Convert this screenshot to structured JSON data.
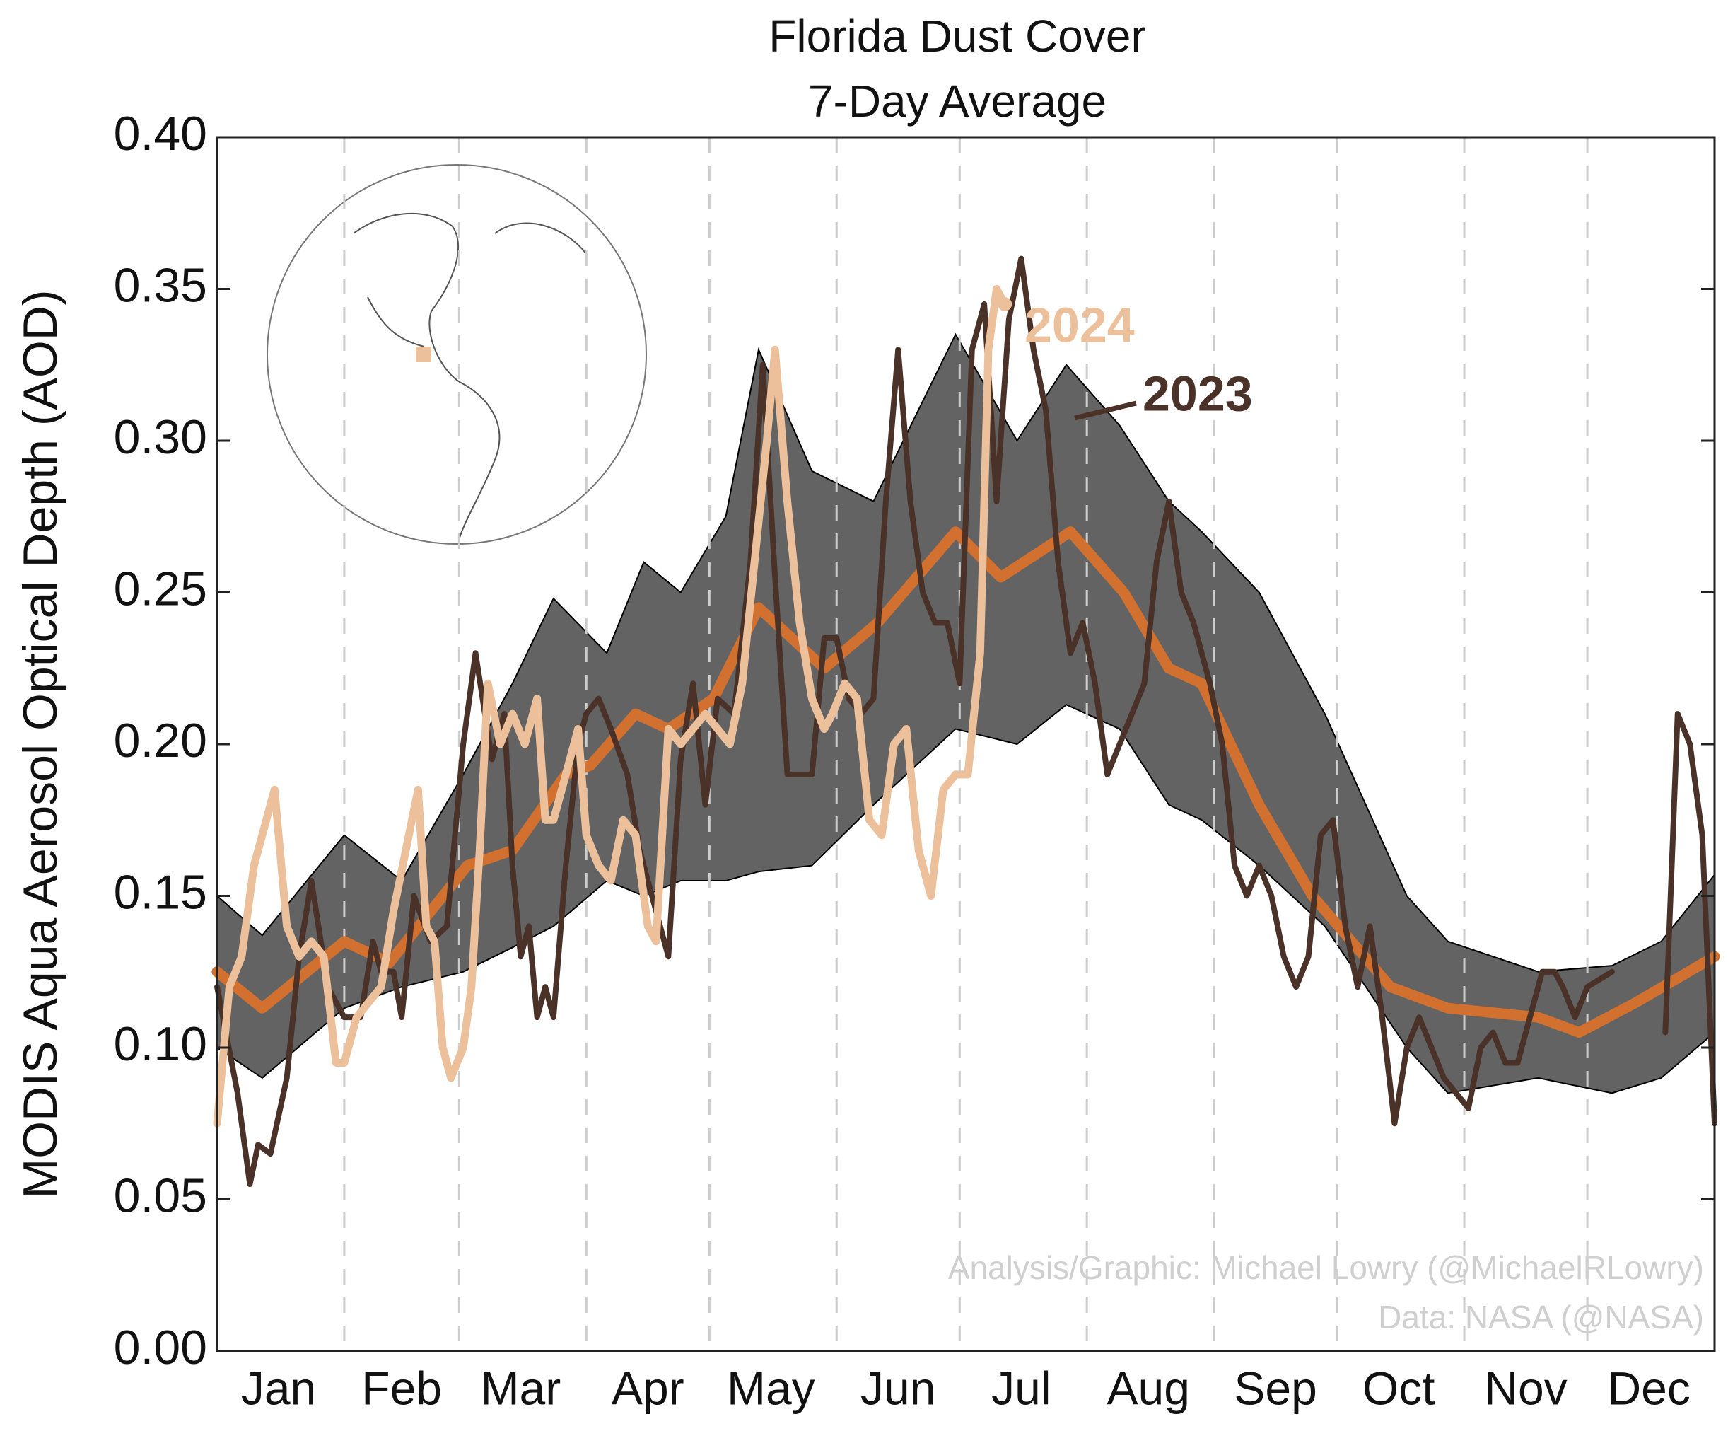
{
  "chart_data": {
    "type": "line",
    "title": "Florida Dust Cover",
    "subtitle": "7-Day Average",
    "y_label": "MODIS Aqua Aerosol Optical Depth (AOD)",
    "credits": [
      "Analysis/Graphic: Michael Lowry (@MichaelRLowry)",
      "Data: NASA (@NASA)"
    ],
    "xlim": [
      0,
      365
    ],
    "ylim": [
      0,
      0.4
    ],
    "yticks": [
      {
        "value": 0,
        "label": "0.00"
      },
      0.05,
      {
        "value": 0.1,
        "label": "0.10"
      },
      0.15,
      {
        "value": 0.2,
        "label": "0.20"
      },
      0.25,
      {
        "value": 0.3,
        "label": "0.30"
      },
      0.35,
      {
        "value": 0.4,
        "label": "0.40"
      }
    ],
    "xticks": [
      {
        "value": 15,
        "label": "Jan"
      },
      {
        "value": 45,
        "label": "Feb"
      },
      {
        "value": 74,
        "label": "Mar"
      },
      {
        "value": 105,
        "label": "Apr"
      },
      {
        "value": 135,
        "label": "May"
      },
      {
        "value": 166,
        "label": "Jun"
      },
      {
        "value": 196,
        "label": "Jul"
      },
      {
        "value": 227,
        "label": "Aug"
      },
      {
        "value": 258,
        "label": "Sep"
      },
      {
        "value": 288,
        "label": "Oct"
      },
      {
        "value": 319,
        "label": "Nov"
      },
      {
        "value": 349,
        "label": "Dec"
      }
    ],
    "xgrid": [
      31,
      59,
      90,
      120,
      151,
      181,
      212,
      243,
      273,
      304,
      334
    ],
    "grid": true,
    "band": {
      "color": "#636363",
      "x": [
        0,
        11,
        31,
        45,
        60,
        72,
        82,
        95,
        104,
        113,
        124,
        132,
        145,
        160,
        180,
        195,
        207,
        220,
        232,
        240,
        254,
        270,
        290,
        300,
        322,
        340,
        352,
        365
      ],
      "upper": [
        0.15,
        0.137,
        0.17,
        0.155,
        0.19,
        0.22,
        0.248,
        0.23,
        0.26,
        0.25,
        0.275,
        0.33,
        0.29,
        0.28,
        0.335,
        0.3,
        0.325,
        0.305,
        0.28,
        0.27,
        0.25,
        0.21,
        0.15,
        0.135,
        0.125,
        0.127,
        0.135,
        0.157
      ],
      "lower": [
        0.1,
        0.09,
        0.113,
        0.12,
        0.125,
        0.133,
        0.14,
        0.155,
        0.15,
        0.155,
        0.155,
        0.158,
        0.16,
        0.18,
        0.205,
        0.2,
        0.213,
        0.205,
        0.18,
        0.175,
        0.16,
        0.14,
        0.1,
        0.085,
        0.09,
        0.085,
        0.09,
        0.105
      ]
    },
    "mean": {
      "color": "#d2712f",
      "x": [
        0,
        11,
        31,
        42,
        61,
        72,
        85,
        91,
        102,
        110,
        121,
        132,
        148,
        161,
        180,
        191,
        208,
        221,
        232,
        240,
        254,
        267,
        286,
        300,
        322,
        332,
        346,
        365
      ],
      "values": [
        0.125,
        0.113,
        0.135,
        0.128,
        0.16,
        0.165,
        0.19,
        0.193,
        0.21,
        0.205,
        0.215,
        0.245,
        0.225,
        0.24,
        0.27,
        0.255,
        0.27,
        0.25,
        0.225,
        0.22,
        0.18,
        0.15,
        0.12,
        0.113,
        0.11,
        0.105,
        0.115,
        0.13
      ]
    },
    "series": [
      {
        "name": "2023",
        "color": "#4a3228",
        "x": [
          0,
          5,
          8,
          10,
          13,
          17,
          20,
          23,
          27,
          31,
          35,
          38,
          40,
          43,
          45,
          48,
          52,
          56,
          60,
          63,
          67,
          70,
          72,
          74,
          76,
          78,
          80,
          82,
          85,
          88,
          90,
          93,
          96,
          100,
          103,
          107,
          110,
          113,
          116,
          119,
          122,
          126,
          130,
          133,
          136,
          139,
          142,
          145,
          148,
          151,
          154,
          157,
          160,
          163,
          166,
          169,
          172,
          175,
          178,
          181,
          184,
          187,
          190,
          193,
          196,
          199,
          202,
          205,
          208,
          211,
          214,
          217,
          220,
          223,
          226,
          229,
          232,
          235,
          238,
          242,
          245,
          248,
          251,
          254,
          257,
          260,
          263,
          266,
          269,
          272,
          275,
          278,
          281,
          284,
          287,
          290,
          293,
          296,
          299,
          302,
          305,
          308,
          311,
          314,
          317,
          320,
          323,
          326,
          328,
          331,
          334,
          340,
          346,
          353,
          356,
          359,
          362,
          365
        ],
        "values": [
          0.12,
          0.085,
          0.055,
          0.068,
          0.065,
          0.09,
          0.13,
          0.155,
          0.12,
          0.11,
          0.11,
          0.135,
          0.125,
          0.125,
          0.11,
          0.15,
          0.135,
          0.14,
          0.2,
          0.23,
          0.195,
          0.21,
          0.16,
          0.13,
          0.14,
          0.11,
          0.12,
          0.11,
          0.16,
          0.2,
          0.21,
          0.215,
          0.205,
          0.19,
          0.165,
          0.145,
          0.13,
          0.195,
          0.22,
          0.18,
          0.215,
          0.21,
          0.26,
          0.325,
          0.255,
          0.19,
          0.19,
          0.19,
          0.235,
          0.235,
          0.215,
          0.21,
          0.215,
          0.28,
          0.33,
          0.28,
          0.25,
          0.24,
          0.24,
          0.22,
          0.33,
          0.345,
          0.28,
          0.34,
          0.36,
          0.33,
          0.31,
          0.26,
          0.23,
          0.24,
          0.22,
          0.19,
          0.2,
          0.21,
          0.22,
          0.26,
          0.28,
          0.25,
          0.24,
          0.22,
          0.2,
          0.16,
          0.15,
          0.16,
          0.15,
          0.13,
          0.12,
          0.13,
          0.17,
          0.175,
          0.14,
          0.12,
          0.14,
          0.11,
          0.075,
          0.1,
          0.11,
          0.1,
          0.09,
          0.085,
          0.08,
          0.1,
          0.105,
          0.095,
          0.095,
          0.11,
          0.125,
          0.125,
          0.12,
          0.11,
          0.12,
          0.125,
          null,
          0.105,
          0.21,
          0.2,
          0.17,
          0.075
        ]
      },
      {
        "name": "2024",
        "color": "#ecc09a",
        "x": [
          0,
          3,
          6,
          9,
          12,
          14,
          17,
          20,
          23,
          26,
          29,
          31,
          34,
          37,
          40,
          43,
          46,
          49,
          51,
          53,
          55,
          57,
          60,
          62,
          64,
          66,
          69,
          72,
          75,
          78,
          80,
          82,
          85,
          88,
          90,
          93,
          96,
          99,
          102,
          105,
          107,
          110,
          113,
          116,
          119,
          122,
          125,
          128,
          131,
          134,
          136,
          139,
          142,
          145,
          148,
          150,
          153,
          156,
          159,
          162,
          165,
          168,
          171,
          174,
          177,
          180,
          183,
          186,
          188,
          190,
          192
        ],
        "values": [
          0.075,
          0.12,
          0.13,
          0.16,
          0.175,
          0.185,
          0.14,
          0.13,
          0.135,
          0.13,
          0.095,
          0.095,
          0.11,
          0.115,
          0.12,
          0.145,
          0.165,
          0.185,
          0.14,
          0.135,
          0.1,
          0.09,
          0.1,
          0.12,
          0.165,
          0.22,
          0.2,
          0.21,
          0.2,
          0.215,
          0.175,
          0.175,
          0.19,
          0.205,
          0.17,
          0.16,
          0.155,
          0.175,
          0.17,
          0.14,
          0.135,
          0.205,
          0.2,
          0.205,
          0.21,
          0.205,
          0.2,
          0.22,
          0.26,
          0.3,
          0.33,
          0.28,
          0.24,
          0.215,
          0.205,
          0.21,
          0.22,
          0.215,
          0.175,
          0.17,
          0.2,
          0.205,
          0.165,
          0.15,
          0.185,
          0.19,
          0.19,
          0.23,
          0.33,
          0.35,
          0.345
        ]
      }
    ]
  }
}
